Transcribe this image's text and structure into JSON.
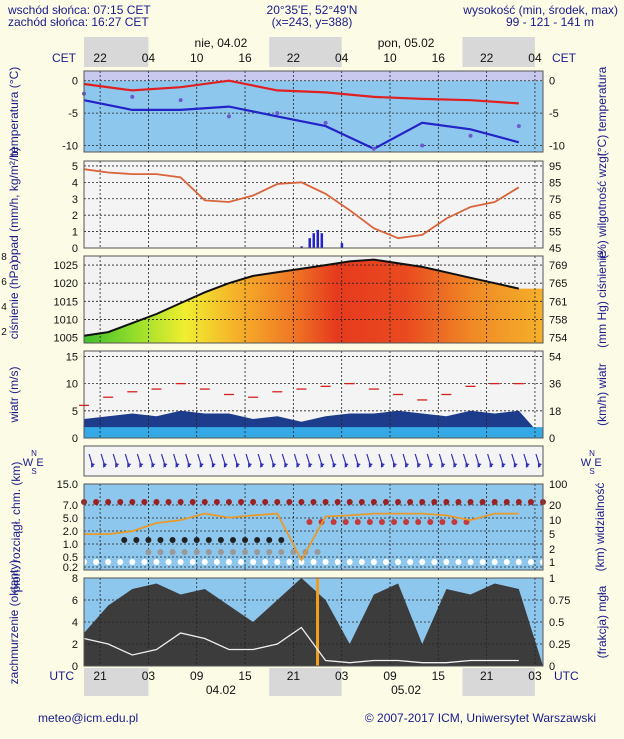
{
  "header": {
    "sunrise": "wschód słońca: 07:15 CET",
    "sunset": "zachód słońca: 16:27 CET",
    "coords": "20°35'E, 52°49'N",
    "grid": "(x=243, y=388)",
    "elevation_title": "wysokość (min, środek, max)",
    "elevation_values": "99 - 121 - 141 m"
  },
  "top_axis": {
    "zone_left": "CET",
    "zone_right": "CET",
    "hours": [
      "22",
      "04",
      "10",
      "16",
      "22",
      "04",
      "10",
      "16",
      "22",
      "04"
    ],
    "day1": "nie, 04.02",
    "day2": "pon, 05.02"
  },
  "bottom_axis": {
    "zone_left": "UTC",
    "zone_right": "UTC",
    "hours": [
      "21",
      "03",
      "09",
      "15",
      "21",
      "03",
      "09",
      "15",
      "21",
      "03"
    ],
    "day1": "04.02",
    "day2": "05.02"
  },
  "footer": {
    "email": "meteo@icm.edu.pl",
    "copyright": "© 2007-2017 ICM, Uniwersytet Warszawski"
  },
  "colors": {
    "background": "#fcfbe6",
    "panel_blue": "#8ec7ee",
    "text_blue": "#1a1a8c",
    "temp_red": "#e02020",
    "temp_blue": "#2323c8",
    "humidity": "#d9643a",
    "wind_dark": "#1e3c8c",
    "visibility": "#e89a2a",
    "cloud_dark": "#3c3c3c"
  },
  "left_edge_ticks": [
    "8",
    "6",
    "4",
    "2"
  ],
  "chart_data": [
    {
      "type": "line",
      "panel": "temperature",
      "ylabel": "temperatura (°C)",
      "ylabel_right": "(°C) temperatura",
      "yticks": [
        "0",
        "-5",
        "-10"
      ],
      "ylim": [
        -11,
        1.5
      ],
      "x_hours": [
        0,
        6,
        12,
        18,
        24,
        30,
        36,
        42,
        48,
        54
      ],
      "series": [
        {
          "values": [
            -0.5,
            -1.5,
            -1.0,
            0,
            -1.5,
            -1.8,
            -2.5,
            -2.8,
            -3,
            -3.5
          ]
        },
        {
          "values": [
            -3,
            -4.5,
            -4.5,
            -4,
            -5.5,
            -7.0,
            -10.5,
            -6.5,
            -7.5,
            -9.5
          ]
        },
        {
          "values": [
            -2,
            -2.5,
            -3.0,
            -5.5,
            -5.0,
            -6.5,
            -10.5,
            -10,
            -8.5,
            -7.0
          ]
        }
      ]
    },
    {
      "type": "line",
      "panel": "precipitation_humidity",
      "ylabel": "opad (mm/h, kg/m²/h)",
      "ylabel_right": "(%) wilgotność wzgl.",
      "yticks": [
        "5",
        "4",
        "3",
        "2",
        "1",
        "0"
      ],
      "yticks_right": [
        "95",
        "85",
        "75",
        "65",
        "55",
        "45"
      ],
      "ylim": [
        0,
        5.3
      ],
      "ylim_right": [
        45,
        98
      ],
      "x_hours": [
        0,
        3,
        6,
        9,
        12,
        15,
        18,
        21,
        24,
        27,
        30,
        33,
        36,
        39,
        42,
        45,
        48,
        51,
        54
      ],
      "series": [
        {
          "values": [
            93,
            91,
            90,
            90,
            88,
            74,
            73,
            77,
            84,
            85,
            78,
            68,
            57,
            51,
            53,
            63,
            70,
            73,
            82
          ]
        }
      ],
      "precip_bars": [
        {
          "hour": 27,
          "value": 0.1
        },
        {
          "hour": 28,
          "value": 0.6
        },
        {
          "hour": 28.5,
          "value": 0.9
        },
        {
          "hour": 29,
          "value": 1.1
        },
        {
          "hour": 29.5,
          "value": 0.9
        },
        {
          "hour": 32,
          "value": 0.3
        }
      ]
    },
    {
      "type": "area",
      "panel": "pressure",
      "ylabel": "ciśnienie (hPa)",
      "ylabel_right": "(mm Hg) ciśnienie",
      "yticks": [
        "1025",
        "1020",
        "1015",
        "1010",
        "1005"
      ],
      "yticks_right": [
        "769",
        "765",
        "761",
        "758",
        "754"
      ],
      "ylim": [
        1003.5,
        1027.5
      ],
      "x_hours": [
        0,
        3,
        6,
        9,
        12,
        15,
        18,
        21,
        24,
        27,
        30,
        33,
        36,
        39,
        42,
        45,
        48,
        51,
        54
      ],
      "series": [
        {
          "values": [
            1005.5,
            1006.5,
            1009,
            1011.5,
            1014.5,
            1017.5,
            1020,
            1022,
            1023,
            1024,
            1025,
            1026,
            1026.5,
            1025.5,
            1024.5,
            1023,
            1021.5,
            1020,
            1018.5
          ]
        }
      ]
    },
    {
      "type": "line",
      "panel": "wind",
      "ylabel": "wiatr (m/s)",
      "ylabel_right": "(km/h) wiatr",
      "yticks": [
        "15",
        "10",
        "5",
        "0"
      ],
      "yticks_right": [
        "54",
        "36",
        "18",
        "0"
      ],
      "ylim": [
        0,
        16
      ],
      "x_hours": [
        0,
        3,
        6,
        9,
        12,
        15,
        18,
        21,
        24,
        27,
        30,
        33,
        36,
        39,
        42,
        45,
        48,
        51,
        54
      ],
      "series": [
        {
          "values": [
            3.5,
            4.0,
            4.5,
            4.0,
            5.0,
            4.5,
            4.5,
            3.5,
            4.0,
            3.0,
            4.0,
            4.5,
            4.5,
            5.0,
            4.5,
            4.0,
            5.0,
            4.5,
            5.0
          ]
        },
        {
          "values": [
            6,
            7.5,
            8.5,
            9.0,
            10.0,
            9.0,
            8.0,
            7.5,
            8.5,
            9.0,
            9.5,
            10.0,
            9.0,
            8.0,
            7.0,
            8.0,
            9.5,
            10.0,
            10.0
          ]
        }
      ]
    },
    {
      "type": "line",
      "panel": "cloudbase_visibility",
      "ylabel": "pion. rozciągł. chm. (km)",
      "ylabel_right": "(km) widzialność",
      "yticks": [
        "15.0",
        "7.0",
        "5.0",
        "2.0",
        "1.0",
        "0.5",
        "0.2"
      ],
      "yticks_right": [
        "100",
        "20",
        "10",
        "5",
        "2",
        "1"
      ],
      "x_hours": [
        0,
        3,
        6,
        9,
        12,
        15,
        18,
        21,
        24,
        27,
        30,
        33,
        36,
        39,
        42,
        45,
        48,
        51,
        54
      ],
      "series": [
        {
          "values": [
            5.0,
            5.0,
            6.0,
            10.0,
            12.0,
            18.0,
            14.0,
            16.0,
            18.0,
            1.0,
            15.0,
            16.0,
            18.0,
            18.0,
            18.0,
            16.0,
            12.0,
            18.0,
            18.0
          ]
        }
      ]
    },
    {
      "type": "area",
      "panel": "cloud_cover",
      "ylabel": "zachmurzenie (oktanty)",
      "ylabel_right": "(frakcja) mgła",
      "yticks": [
        "8",
        "6",
        "4",
        "2",
        "0"
      ],
      "yticks_right": [
        "1",
        "0.75",
        "0.5",
        "0.25",
        "0"
      ],
      "ylim": [
        0,
        8
      ],
      "x_hours": [
        0,
        3,
        6,
        9,
        12,
        15,
        18,
        21,
        24,
        27,
        30,
        33,
        36,
        39,
        42,
        45,
        48,
        51,
        54
      ],
      "series": [
        {
          "values": [
            3.0,
            5.5,
            7.0,
            7.5,
            6.5,
            7.0,
            5.5,
            4.0,
            6.0,
            8.0,
            6.0,
            2.0,
            6.5,
            7.5,
            2.0,
            7.0,
            6.5,
            7.5,
            7.0
          ]
        },
        {
          "values": [
            2.5,
            2.0,
            1.0,
            1.5,
            3.0,
            2.5,
            1.5,
            1.5,
            2.0,
            3.5,
            0.5,
            0.3,
            0.5,
            0.5,
            0.3,
            0.3,
            0.5,
            0.5,
            0.5
          ]
        }
      ]
    }
  ]
}
